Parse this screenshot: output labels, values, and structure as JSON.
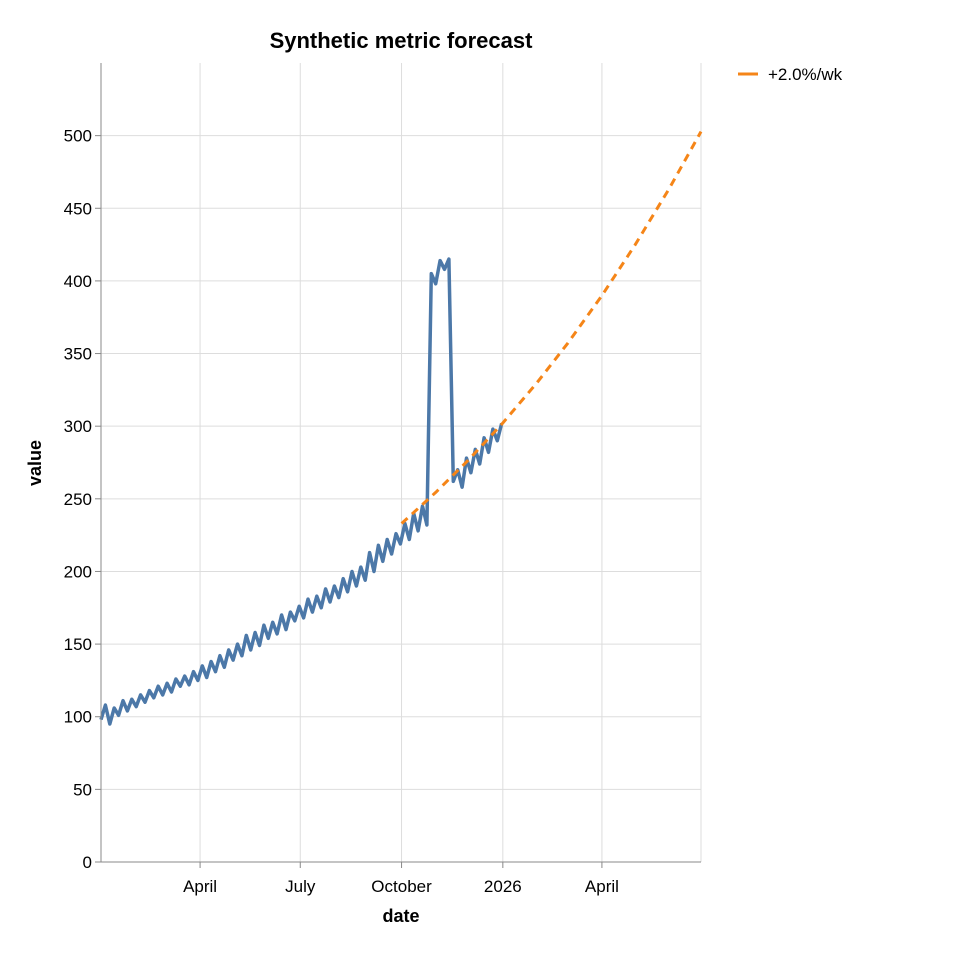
{
  "chart_data": {
    "type": "line",
    "title": "Synthetic metric forecast",
    "xlabel": "date",
    "ylabel": "value",
    "xlim": [
      "2025-01-01",
      "2026-06-30"
    ],
    "ylim": [
      0,
      550
    ],
    "grid": true,
    "x_ticks": [
      {
        "date": "2025-04-01",
        "label": "April"
      },
      {
        "date": "2025-07-01",
        "label": "July"
      },
      {
        "date": "2025-10-01",
        "label": "October"
      },
      {
        "date": "2026-01-01",
        "label": "2026"
      },
      {
        "date": "2026-04-01",
        "label": "April"
      }
    ],
    "y_ticks": [
      0,
      50,
      100,
      150,
      200,
      250,
      300,
      350,
      400,
      450,
      500
    ],
    "legend": {
      "placement": "top-right",
      "entries": [
        {
          "label": "+2.0%/wk",
          "color": "#f58518",
          "dash": true
        }
      ]
    },
    "series": [
      {
        "color": "#4c78a8",
        "points": [
          [
            "2025-01-01",
            98
          ],
          [
            "2025-01-05",
            108
          ],
          [
            "2025-01-09",
            95
          ],
          [
            "2025-01-13",
            106
          ],
          [
            "2025-01-17",
            101
          ],
          [
            "2025-01-21",
            111
          ],
          [
            "2025-01-25",
            104
          ],
          [
            "2025-01-29",
            112
          ],
          [
            "2025-02-02",
            107
          ],
          [
            "2025-02-06",
            115
          ],
          [
            "2025-02-10",
            110
          ],
          [
            "2025-02-14",
            118
          ],
          [
            "2025-02-18",
            113
          ],
          [
            "2025-02-22",
            121
          ],
          [
            "2025-02-26",
            115
          ],
          [
            "2025-03-02",
            123
          ],
          [
            "2025-03-06",
            117
          ],
          [
            "2025-03-10",
            126
          ],
          [
            "2025-03-14",
            121
          ],
          [
            "2025-03-18",
            128
          ],
          [
            "2025-03-22",
            122
          ],
          [
            "2025-03-26",
            131
          ],
          [
            "2025-03-30",
            125
          ],
          [
            "2025-04-03",
            135
          ],
          [
            "2025-04-07",
            127
          ],
          [
            "2025-04-11",
            138
          ],
          [
            "2025-04-15",
            131
          ],
          [
            "2025-04-19",
            142
          ],
          [
            "2025-04-23",
            134
          ],
          [
            "2025-04-27",
            146
          ],
          [
            "2025-05-01",
            139
          ],
          [
            "2025-05-05",
            150
          ],
          [
            "2025-05-09",
            142
          ],
          [
            "2025-05-13",
            156
          ],
          [
            "2025-05-17",
            146
          ],
          [
            "2025-05-21",
            158
          ],
          [
            "2025-05-25",
            149
          ],
          [
            "2025-05-29",
            163
          ],
          [
            "2025-06-02",
            154
          ],
          [
            "2025-06-06",
            165
          ],
          [
            "2025-06-10",
            157
          ],
          [
            "2025-06-14",
            170
          ],
          [
            "2025-06-18",
            160
          ],
          [
            "2025-06-22",
            172
          ],
          [
            "2025-06-26",
            166
          ],
          [
            "2025-06-30",
            176
          ],
          [
            "2025-07-04",
            168
          ],
          [
            "2025-07-08",
            181
          ],
          [
            "2025-07-12",
            172
          ],
          [
            "2025-07-16",
            183
          ],
          [
            "2025-07-20",
            175
          ],
          [
            "2025-07-24",
            188
          ],
          [
            "2025-07-28",
            179
          ],
          [
            "2025-08-01",
            190
          ],
          [
            "2025-08-05",
            182
          ],
          [
            "2025-08-09",
            195
          ],
          [
            "2025-08-13",
            186
          ],
          [
            "2025-08-17",
            200
          ],
          [
            "2025-08-21",
            190
          ],
          [
            "2025-08-25",
            203
          ],
          [
            "2025-08-29",
            194
          ],
          [
            "2025-09-02",
            213
          ],
          [
            "2025-09-06",
            200
          ],
          [
            "2025-09-10",
            218
          ],
          [
            "2025-09-14",
            207
          ],
          [
            "2025-09-18",
            222
          ],
          [
            "2025-09-22",
            212
          ],
          [
            "2025-09-26",
            226
          ],
          [
            "2025-09-30",
            219
          ],
          [
            "2025-10-04",
            233
          ],
          [
            "2025-10-08",
            222
          ],
          [
            "2025-10-12",
            240
          ],
          [
            "2025-10-16",
            228
          ],
          [
            "2025-10-20",
            245
          ],
          [
            "2025-10-24",
            232
          ],
          [
            "2025-10-28",
            405
          ],
          [
            "2025-11-01",
            398
          ],
          [
            "2025-11-05",
            414
          ],
          [
            "2025-11-09",
            408
          ],
          [
            "2025-11-13",
            415
          ],
          [
            "2025-11-17",
            262
          ],
          [
            "2025-11-21",
            270
          ],
          [
            "2025-11-25",
            258
          ],
          [
            "2025-11-29",
            278
          ],
          [
            "2025-12-03",
            268
          ],
          [
            "2025-12-07",
            284
          ],
          [
            "2025-12-11",
            274
          ],
          [
            "2025-12-15",
            292
          ],
          [
            "2025-12-19",
            282
          ],
          [
            "2025-12-23",
            298
          ],
          [
            "2025-12-27",
            290
          ],
          [
            "2025-12-31",
            302
          ]
        ]
      },
      {
        "name": "+2.0%/wk",
        "color": "#f58518",
        "dashed": true,
        "points": [
          [
            "2025-10-01",
            233
          ],
          [
            "2025-11-01",
            254.4
          ],
          [
            "2025-12-01",
            276.9
          ],
          [
            "2026-01-01",
            302.2
          ],
          [
            "2026-02-01",
            329.9
          ],
          [
            "2026-03-01",
            357.1
          ],
          [
            "2026-04-01",
            389.9
          ],
          [
            "2026-05-01",
            424.6
          ],
          [
            "2026-06-01",
            463.4
          ],
          [
            "2026-06-30",
            502.8
          ]
        ]
      }
    ]
  }
}
